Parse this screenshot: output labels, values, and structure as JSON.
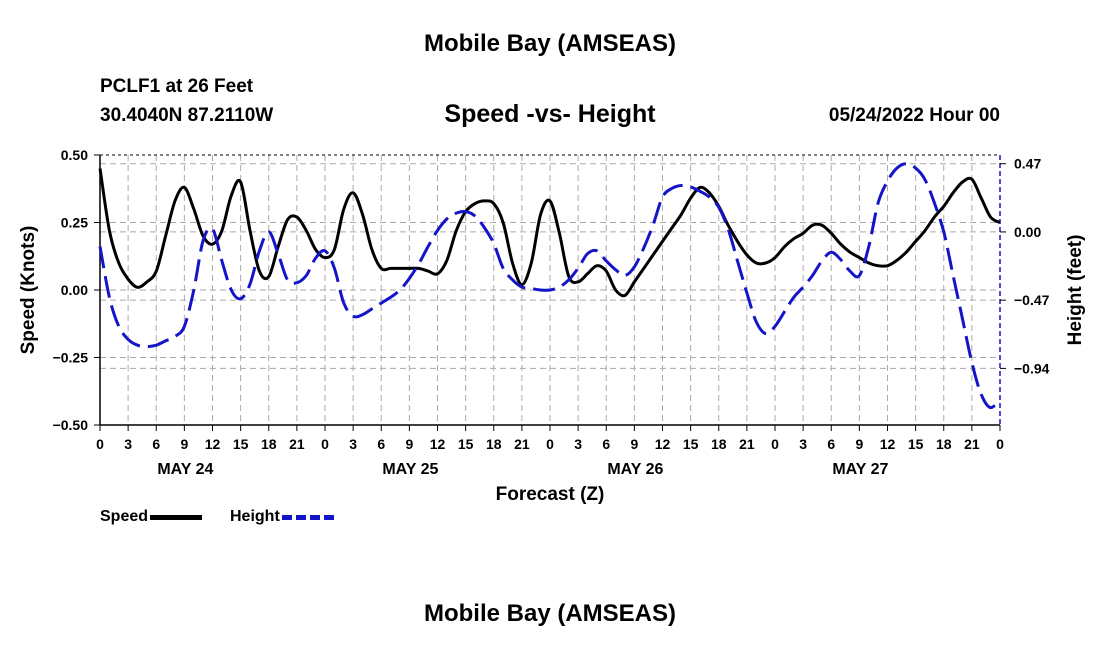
{
  "header": {
    "title": "Mobile Bay (AMSEAS)",
    "station": "PCLF1 at 26 Feet",
    "coords": "30.4040N  87.2110W",
    "subtitle": "Speed -vs- Height",
    "datetime": "05/24/2022 Hour 00"
  },
  "footer": {
    "title": "Mobile Bay (AMSEAS)"
  },
  "legend": {
    "speed_label": "Speed",
    "height_label": "Height"
  },
  "colors": {
    "speed": "#000000",
    "height": "#1414c8",
    "grid": "#aaaaaa"
  },
  "chart_data": {
    "type": "line",
    "title": "Speed -vs- Height",
    "xlabel": "Forecast (Z)",
    "ylabel": "Speed (Knots)",
    "y2label": "Height (feet)",
    "xlim": [
      0,
      96
    ],
    "ylim": [
      -0.5,
      0.5
    ],
    "y2lim": [
      -1.33,
      0.53
    ],
    "x_tick_step": 3,
    "x_tick_labels": [
      "0",
      "3",
      "6",
      "9",
      "12",
      "15",
      "18",
      "21",
      "0",
      "3",
      "6",
      "9",
      "12",
      "15",
      "18",
      "21",
      "0",
      "3",
      "6",
      "9",
      "12",
      "15",
      "18",
      "21",
      "0",
      "3",
      "6",
      "9",
      "12",
      "15",
      "18",
      "21",
      "0"
    ],
    "day_labels": [
      {
        "x": 9,
        "label": "MAY 24"
      },
      {
        "x": 33,
        "label": "MAY 25"
      },
      {
        "x": 57,
        "label": "MAY 26"
      },
      {
        "x": 81,
        "label": "MAY 27"
      }
    ],
    "y_ticks": [
      -0.5,
      -0.25,
      0.0,
      0.25,
      0.5
    ],
    "y_tick_labels": [
      "−0.50",
      "−0.25",
      "0.00",
      "0.25",
      "0.50"
    ],
    "y2_ticks": [
      -0.94,
      -0.47,
      0.0,
      0.47
    ],
    "y2_tick_labels": [
      "−0.94",
      "−0.47",
      "0.00",
      "0.47"
    ],
    "series": [
      {
        "name": "Speed",
        "axis": "left",
        "x": [
          0,
          1,
          2,
          3,
          4,
          5,
          6,
          7,
          8,
          9,
          10,
          11,
          12,
          13,
          14,
          15,
          16,
          17,
          18,
          19,
          20,
          21,
          22,
          23,
          24,
          25,
          26,
          27,
          28,
          29,
          30,
          31,
          32,
          33,
          34,
          35,
          36,
          37,
          38,
          39,
          40,
          41,
          42,
          43,
          44,
          45,
          46,
          47,
          48,
          49,
          50,
          51,
          52,
          53,
          54,
          55,
          56,
          57,
          58,
          59,
          60,
          61,
          62,
          63,
          64,
          65,
          66,
          67,
          68,
          69,
          70,
          71,
          72,
          73,
          74,
          75,
          76,
          77,
          78,
          79,
          80,
          81,
          82,
          83,
          84,
          85,
          86,
          87,
          88,
          89,
          90,
          91,
          92,
          93,
          94,
          95,
          96
        ],
        "values": [
          0.45,
          0.22,
          0.1,
          0.04,
          0.01,
          0.03,
          0.07,
          0.2,
          0.33,
          0.38,
          0.3,
          0.2,
          0.17,
          0.22,
          0.35,
          0.4,
          0.22,
          0.07,
          0.05,
          0.16,
          0.26,
          0.27,
          0.22,
          0.15,
          0.12,
          0.15,
          0.3,
          0.36,
          0.28,
          0.15,
          0.08,
          0.08,
          0.08,
          0.08,
          0.08,
          0.07,
          0.06,
          0.11,
          0.22,
          0.29,
          0.32,
          0.33,
          0.32,
          0.25,
          0.1,
          0.02,
          0.1,
          0.28,
          0.33,
          0.21,
          0.05,
          0.03,
          0.06,
          0.09,
          0.07,
          0.0,
          -0.02,
          0.03,
          0.08,
          0.13,
          0.18,
          0.23,
          0.28,
          0.34,
          0.38,
          0.36,
          0.31,
          0.24,
          0.18,
          0.13,
          0.1,
          0.1,
          0.12,
          0.16,
          0.19,
          0.21,
          0.24,
          0.24,
          0.21,
          0.17,
          0.14,
          0.12,
          0.1,
          0.09,
          0.09,
          0.11,
          0.14,
          0.18,
          0.22,
          0.27,
          0.31,
          0.36,
          0.4,
          0.41,
          0.34,
          0.27,
          0.25
        ]
      },
      {
        "name": "Height",
        "axis": "right",
        "x": [
          0,
          1,
          2,
          3,
          4,
          5,
          6,
          7,
          8,
          9,
          10,
          11,
          12,
          13,
          14,
          15,
          16,
          17,
          18,
          19,
          20,
          21,
          22,
          23,
          24,
          25,
          26,
          27,
          28,
          29,
          30,
          31,
          32,
          33,
          34,
          35,
          36,
          37,
          38,
          39,
          40,
          41,
          42,
          43,
          44,
          45,
          46,
          47,
          48,
          49,
          50,
          51,
          52,
          53,
          54,
          55,
          56,
          57,
          58,
          59,
          60,
          61,
          62,
          63,
          64,
          65,
          66,
          67,
          68,
          69,
          70,
          71,
          72,
          73,
          74,
          75,
          76,
          77,
          78,
          79,
          80,
          81,
          82,
          83,
          84,
          85,
          86,
          87,
          88,
          89,
          90,
          91,
          92,
          93,
          94,
          95,
          96
        ],
        "values": [
          -0.1,
          -0.45,
          -0.65,
          -0.74,
          -0.78,
          -0.79,
          -0.78,
          -0.75,
          -0.72,
          -0.65,
          -0.4,
          -0.06,
          0.02,
          -0.2,
          -0.4,
          -0.46,
          -0.36,
          -0.13,
          0.0,
          -0.15,
          -0.33,
          -0.35,
          -0.3,
          -0.18,
          -0.13,
          -0.25,
          -0.49,
          -0.58,
          -0.57,
          -0.53,
          -0.49,
          -0.45,
          -0.4,
          -0.32,
          -0.22,
          -0.1,
          0.01,
          0.09,
          0.13,
          0.14,
          0.11,
          0.03,
          -0.08,
          -0.25,
          -0.33,
          -0.38,
          -0.39,
          -0.4,
          -0.4,
          -0.38,
          -0.33,
          -0.25,
          -0.15,
          -0.13,
          -0.2,
          -0.26,
          -0.3,
          -0.24,
          -0.11,
          0.05,
          0.24,
          0.3,
          0.32,
          0.31,
          0.28,
          0.24,
          0.17,
          0.02,
          -0.2,
          -0.42,
          -0.62,
          -0.7,
          -0.65,
          -0.55,
          -0.45,
          -0.38,
          -0.3,
          -0.2,
          -0.14,
          -0.19,
          -0.27,
          -0.3,
          -0.1,
          0.2,
          0.35,
          0.44,
          0.47,
          0.44,
          0.36,
          0.2,
          0.0,
          -0.3,
          -0.6,
          -0.9,
          -1.12,
          -1.21,
          -1.15
        ]
      }
    ]
  }
}
